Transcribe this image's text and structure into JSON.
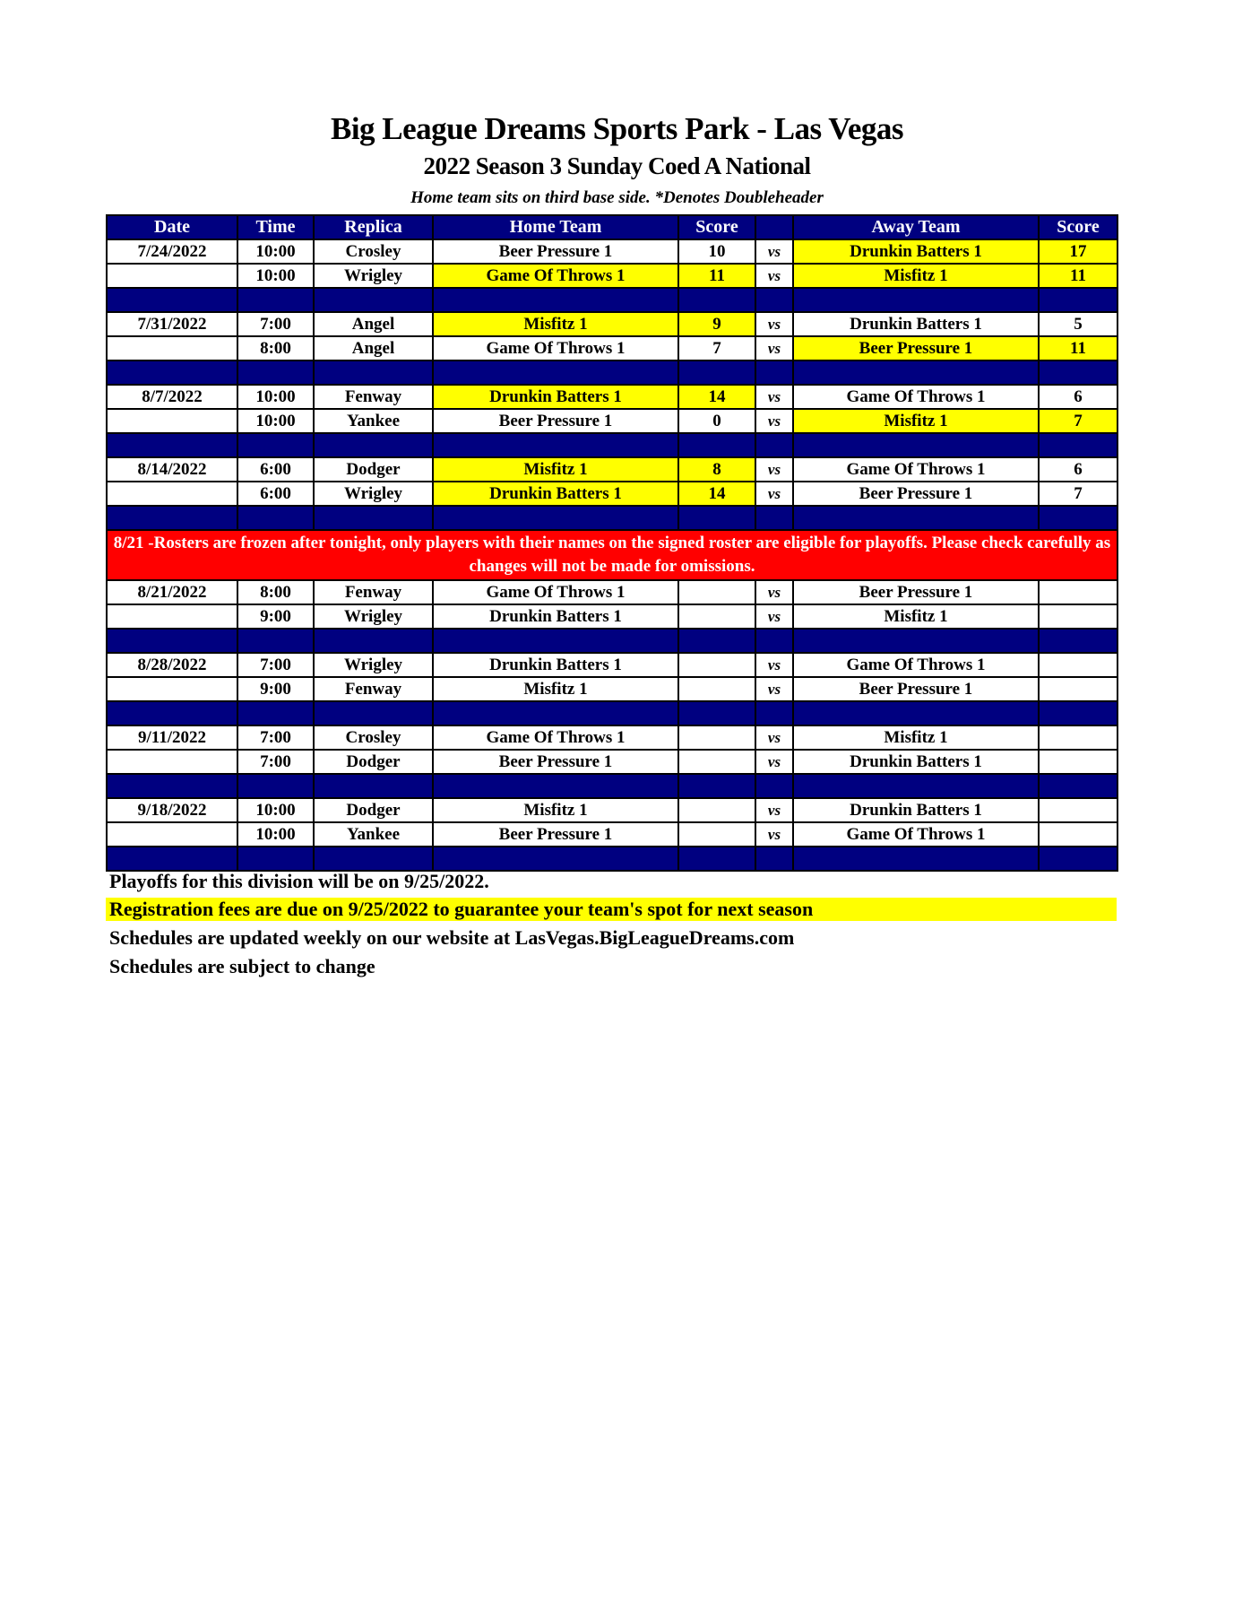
{
  "header": {
    "title": "Big League Dreams Sports Park - Las Vegas",
    "subtitle": "2022 Season 3 Sunday Coed A National",
    "note": "Home team sits on third base side.  *Denotes Doubleheader"
  },
  "columns": [
    "Date",
    "Time",
    "Replica",
    "Home Team",
    "Score",
    "",
    "Away Team",
    "Score"
  ],
  "highlight_color": "#ffff00",
  "header_color": "#000080",
  "alert_color": "#ff0000",
  "weeks": [
    {
      "games": [
        {
          "date": "7/24/2022",
          "time": "10:00",
          "replica": "Crosley",
          "home": "Beer Pressure 1",
          "home_score": "10",
          "vs": "vs",
          "away": "Drunkin Batters 1",
          "away_score": "17",
          "winner": "away"
        },
        {
          "date": "",
          "time": "10:00",
          "replica": "Wrigley",
          "home": "Game Of Throws 1",
          "home_score": "11",
          "vs": "vs",
          "away": "Misfitz 1",
          "away_score": "11",
          "winner": "both"
        }
      ]
    },
    {
      "games": [
        {
          "date": "7/31/2022",
          "time": "7:00",
          "replica": "Angel",
          "home": "Misfitz 1",
          "home_score": "9",
          "vs": "vs",
          "away": "Drunkin Batters 1",
          "away_score": "5",
          "winner": "home"
        },
        {
          "date": "",
          "time": "8:00",
          "replica": "Angel",
          "home": "Game Of Throws 1",
          "home_score": "7",
          "vs": "vs",
          "away": "Beer Pressure 1",
          "away_score": "11",
          "winner": "away"
        }
      ]
    },
    {
      "games": [
        {
          "date": "8/7/2022",
          "time": "10:00",
          "replica": "Fenway",
          "home": "Drunkin Batters 1",
          "home_score": "14",
          "vs": "vs",
          "away": "Game Of Throws 1",
          "away_score": "6",
          "winner": "home"
        },
        {
          "date": "",
          "time": "10:00",
          "replica": "Yankee",
          "home": "Beer Pressure 1",
          "home_score": "0",
          "vs": "vs",
          "away": "Misfitz 1",
          "away_score": "7",
          "winner": "away"
        }
      ]
    },
    {
      "games": [
        {
          "date": "8/14/2022",
          "time": "6:00",
          "replica": "Dodger",
          "home": "Misfitz 1",
          "home_score": "8",
          "vs": "vs",
          "away": "Game Of Throws 1",
          "away_score": "6",
          "winner": "home"
        },
        {
          "date": "",
          "time": "6:00",
          "replica": "Wrigley",
          "home": "Drunkin Batters 1",
          "home_score": "14",
          "vs": "vs",
          "away": "Beer Pressure 1",
          "away_score": "7",
          "winner": "home"
        }
      ]
    },
    {
      "alert": "8/21 -Rosters are frozen after tonight, only players with their names on the signed roster are eligible for playoffs. Please check carefully as changes will not be made for omissions.",
      "no_blank_before": true,
      "games": [
        {
          "date": "8/21/2022",
          "time": "8:00",
          "replica": "Fenway",
          "home": "Game Of Throws 1",
          "home_score": "",
          "vs": "vs",
          "away": "Beer Pressure 1",
          "away_score": "",
          "winner": ""
        },
        {
          "date": "",
          "time": "9:00",
          "replica": "Wrigley",
          "home": "Drunkin Batters 1",
          "home_score": "",
          "vs": "vs",
          "away": "Misfitz 1",
          "away_score": "",
          "winner": ""
        }
      ]
    },
    {
      "games": [
        {
          "date": "8/28/2022",
          "time": "7:00",
          "replica": "Wrigley",
          "home": "Drunkin Batters 1",
          "home_score": "",
          "vs": "vs",
          "away": "Game Of Throws 1",
          "away_score": "",
          "winner": ""
        },
        {
          "date": "",
          "time": "9:00",
          "replica": "Fenway",
          "home": "Misfitz 1",
          "home_score": "",
          "vs": "vs",
          "away": "Beer Pressure 1",
          "away_score": "",
          "winner": ""
        }
      ]
    },
    {
      "games": [
        {
          "date": "9/11/2022",
          "time": "7:00",
          "replica": "Crosley",
          "home": "Game Of Throws 1",
          "home_score": "",
          "vs": "vs",
          "away": "Misfitz 1",
          "away_score": "",
          "winner": ""
        },
        {
          "date": "",
          "time": "7:00",
          "replica": "Dodger",
          "home": "Beer Pressure 1",
          "home_score": "",
          "vs": "vs",
          "away": "Drunkin Batters 1",
          "away_score": "",
          "winner": ""
        }
      ]
    },
    {
      "games": [
        {
          "date": "9/18/2022",
          "time": "10:00",
          "replica": "Dodger",
          "home": "Misfitz 1",
          "home_score": "",
          "vs": "vs",
          "away": "Drunkin Batters 1",
          "away_score": "",
          "winner": ""
        },
        {
          "date": "",
          "time": "10:00",
          "replica": "Yankee",
          "home": "Beer Pressure 1",
          "home_score": "",
          "vs": "vs",
          "away": "Game Of Throws 1",
          "away_score": "",
          "winner": ""
        }
      ]
    }
  ],
  "footer": [
    "Playoffs for this division will be on 9/25/2022.",
    "Registration fees are due on 9/25/2022 to guarantee your team's spot for next season",
    "Schedules are updated weekly on our website at LasVegas.BigLeagueDreams.com",
    "Schedules are subject to change"
  ]
}
